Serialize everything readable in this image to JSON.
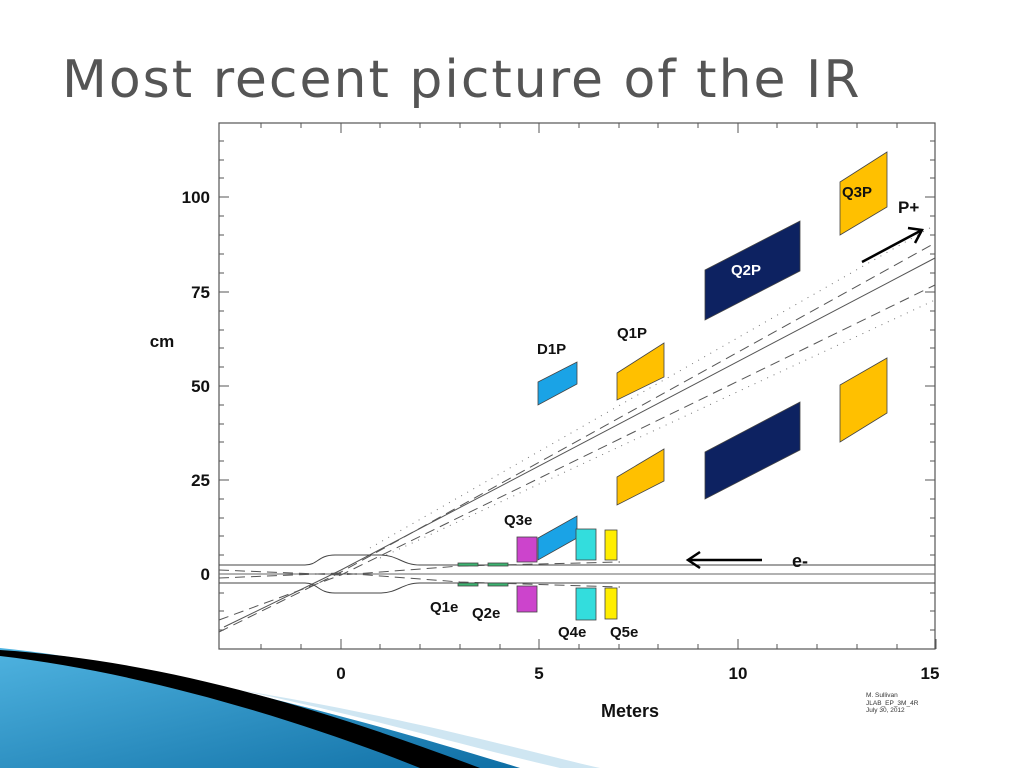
{
  "slide": {
    "title": "Most recent picture of the IR"
  },
  "figure": {
    "x_axis_label": "Meters",
    "y_axis_label": "cm",
    "x_ticks": [
      "0",
      "5",
      "10",
      "15"
    ],
    "y_ticks": [
      "0",
      "25",
      "50",
      "75",
      "100"
    ],
    "beam_labels": {
      "proton": "P+",
      "electron": "e-"
    },
    "magnets": [
      {
        "label": "Q1e",
        "color": "#3cb371"
      },
      {
        "label": "Q2e",
        "color": "#3cb371"
      },
      {
        "label": "Q3e",
        "color": "#cc44cc"
      },
      {
        "label": "Q4e",
        "color": "#33dddd"
      },
      {
        "label": "Q5e",
        "color": "#ffee00"
      },
      {
        "label": "D1P",
        "color": "#1aa3e6"
      },
      {
        "label": "Q1P",
        "color": "#ffc000"
      },
      {
        "label": "Q2P",
        "color": "#0d2261"
      },
      {
        "label": "Q3P",
        "color": "#ffc000"
      }
    ],
    "credit": [
      "M. Sullivan",
      "JLAB_EP_3M_4R",
      "July 30, 2012"
    ]
  },
  "colors": {
    "title": "#555555",
    "axis": "#333333",
    "swoosh_blue": "#1e8bc3",
    "swoosh_black": "#000000"
  }
}
